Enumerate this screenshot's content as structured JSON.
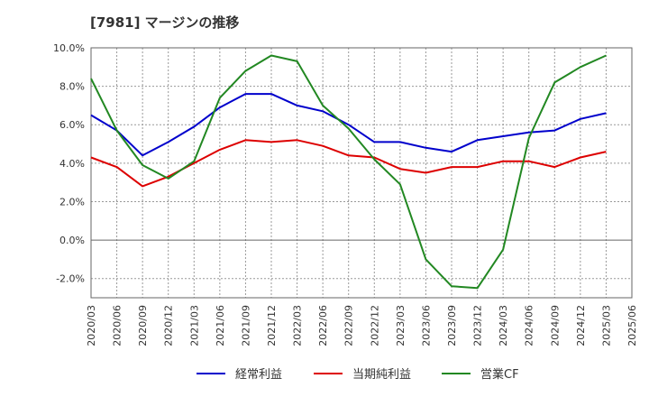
{
  "chart_data": {
    "type": "line",
    "title": "[7981]  マージンの推移",
    "x": [
      "2020/03",
      "2020/06",
      "2020/09",
      "2020/12",
      "2021/03",
      "2021/06",
      "2021/09",
      "2021/12",
      "2022/03",
      "2022/06",
      "2022/09",
      "2022/12",
      "2023/03",
      "2023/06",
      "2023/09",
      "2023/12",
      "2024/03",
      "2024/06",
      "2024/09",
      "2024/12",
      "2025/03",
      "2025/06"
    ],
    "ylim": [
      -3.0,
      10.0
    ],
    "yticks": [
      "10.0%",
      "8.0%",
      "6.0%",
      "4.0%",
      "2.0%",
      "0.0%",
      "-2.0%"
    ],
    "ytick_values": [
      10,
      8,
      6,
      4,
      2,
      0,
      -2
    ],
    "grid": true,
    "legend_position": "bottom",
    "series": [
      {
        "name": "経常利益",
        "color": "#0000cc",
        "values": [
          6.5,
          5.7,
          4.4,
          5.1,
          5.9,
          6.9,
          7.6,
          7.6,
          7.0,
          6.7,
          6.0,
          5.1,
          5.1,
          4.8,
          4.6,
          5.2,
          5.4,
          5.6,
          5.7,
          6.3,
          6.6,
          null
        ]
      },
      {
        "name": "当期純利益",
        "color": "#dd0000",
        "values": [
          4.3,
          3.8,
          2.8,
          3.3,
          4.0,
          4.7,
          5.2,
          5.1,
          5.2,
          4.9,
          4.4,
          4.3,
          3.7,
          3.5,
          3.8,
          3.8,
          4.1,
          4.1,
          3.8,
          4.3,
          4.6,
          null
        ]
      },
      {
        "name": "営業CF",
        "color": "#228822",
        "values": [
          8.4,
          5.7,
          3.9,
          3.2,
          4.1,
          7.4,
          8.8,
          9.6,
          9.3,
          7.0,
          5.8,
          4.2,
          2.9,
          -1.0,
          -2.4,
          -2.5,
          -0.5,
          5.3,
          8.2,
          9.0,
          9.6,
          null
        ]
      }
    ]
  }
}
